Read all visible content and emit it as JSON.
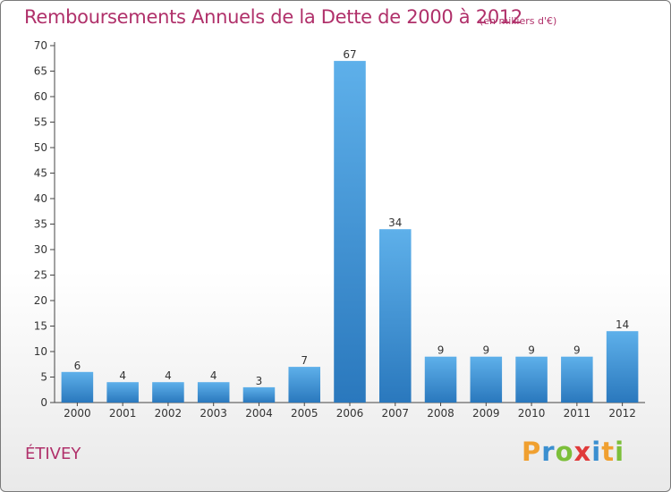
{
  "title": "Remboursements Annuels de la Dette de 2000 à 2012",
  "subtitle": "(en milliers d'€)",
  "commune": "ÉTIVEY",
  "logo": {
    "text": "Proxiti",
    "letters": [
      {
        "char": "P",
        "color": "#f0a030"
      },
      {
        "char": "r",
        "color": "#3a8fd0"
      },
      {
        "char": "o",
        "color": "#7cbf3a"
      },
      {
        "char": "x",
        "color": "#e03a3a"
      },
      {
        "char": "i",
        "color": "#3a8fd0"
      },
      {
        "char": "t",
        "color": "#f0a030"
      },
      {
        "char": "i",
        "color": "#7cbf3a"
      }
    ]
  },
  "colors": {
    "bar_top": "#5eb0ea",
    "bar_bottom": "#2a78bd",
    "text": "#b0306a",
    "axis": "#444444"
  },
  "chart_data": {
    "type": "bar",
    "categories": [
      "2000",
      "2001",
      "2002",
      "2003",
      "2004",
      "2005",
      "2006",
      "2007",
      "2008",
      "2009",
      "2010",
      "2011",
      "2012"
    ],
    "values": [
      6,
      4,
      4,
      4,
      3,
      7,
      67,
      34,
      9,
      9,
      9,
      9,
      14
    ],
    "title": "Remboursements Annuels de la Dette de 2000 à 2012",
    "xlabel": "",
    "ylabel": "",
    "ylim": [
      0,
      70
    ],
    "yticks": [
      0,
      5,
      10,
      15,
      20,
      25,
      30,
      35,
      40,
      45,
      50,
      55,
      60,
      65,
      70
    ],
    "grid": false,
    "data_labels": true
  }
}
